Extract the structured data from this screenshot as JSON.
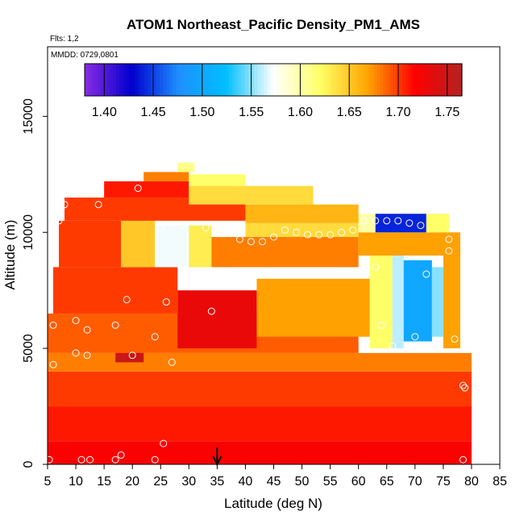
{
  "chart_data": {
    "type": "heatmap",
    "title": "ATOM1 Northeast_Pacific Density_PM1_AMS",
    "subtitle_flights": "Flts: 1,2",
    "subtitle_dates": "MMDD: 0729,0801",
    "xlabel": "Latitude (deg N)",
    "ylabel": "Altitude (m)",
    "xlim": [
      5,
      85
    ],
    "ylim": [
      0,
      18000
    ],
    "x_ticks": [
      "5",
      "10",
      "15",
      "20",
      "25",
      "30",
      "35",
      "40",
      "45",
      "50",
      "55",
      "60",
      "65",
      "70",
      "75",
      "80",
      "85"
    ],
    "y_ticks": [
      "0",
      "5000",
      "10000",
      "15000"
    ],
    "colorbar": {
      "min": 1.38,
      "max": 1.765,
      "ticks": [
        "1.40",
        "1.45",
        "1.50",
        "1.55",
        "1.60",
        "1.65",
        "1.70",
        "1.75"
      ],
      "colors": [
        "#8a2be2",
        "#0000cd",
        "#1e90ff",
        "#00bfff",
        "#ffffff",
        "#ffff66",
        "#ffa500",
        "#ff0000",
        "#b22222"
      ],
      "placement": "top"
    },
    "marker": {
      "x": 35,
      "symbol": "down-arrow"
    },
    "sample_points": [
      [
        5.3,
        200
      ],
      [
        11,
        200
      ],
      [
        12.5,
        200
      ],
      [
        17,
        200
      ],
      [
        18,
        400
      ],
      [
        24,
        200
      ],
      [
        25.5,
        900
      ],
      [
        78.5,
        200
      ],
      [
        6,
        4300
      ],
      [
        10,
        4800
      ],
      [
        12,
        4700
      ],
      [
        20,
        4700
      ],
      [
        27,
        4400
      ],
      [
        78.5,
        3400
      ],
      [
        78.8,
        3300
      ],
      [
        6,
        6000
      ],
      [
        10,
        6200
      ],
      [
        12,
        5800
      ],
      [
        17,
        6000
      ],
      [
        24,
        5500
      ],
      [
        66,
        5100
      ],
      [
        70,
        5500
      ],
      [
        77,
        5400
      ],
      [
        19,
        7100
      ],
      [
        26,
        7000
      ],
      [
        34,
        6600
      ],
      [
        64,
        6000
      ],
      [
        72,
        8200
      ],
      [
        63,
        8500
      ],
      [
        76,
        9200
      ],
      [
        76,
        9700
      ],
      [
        7,
        10500
      ],
      [
        25,
        10200
      ],
      [
        29,
        10300
      ],
      [
        33,
        10200
      ],
      [
        39,
        9700
      ],
      [
        41,
        9600
      ],
      [
        43,
        9600
      ],
      [
        45,
        9800
      ],
      [
        47,
        10100
      ],
      [
        49,
        10000
      ],
      [
        51,
        9900
      ],
      [
        53,
        9900
      ],
      [
        55,
        9900
      ],
      [
        57,
        10000
      ],
      [
        59,
        10100
      ],
      [
        61,
        10500
      ],
      [
        63,
        10500
      ],
      [
        65,
        10500
      ],
      [
        67,
        10500
      ],
      [
        69,
        10400
      ],
      [
        71,
        10300
      ],
      [
        8,
        11200
      ],
      [
        14,
        11200
      ],
      [
        21,
        11900
      ]
    ],
    "grid": [
      {
        "x0": 5,
        "x1": 80,
        "y0": 0,
        "y1": 1000,
        "v": 1.72
      },
      {
        "x0": 5,
        "x1": 80,
        "y0": 1000,
        "y1": 2500,
        "v": 1.71
      },
      {
        "x0": 5,
        "x1": 80,
        "y0": 2500,
        "y1": 4000,
        "v": 1.7
      },
      {
        "x0": 5,
        "x1": 80,
        "y0": 4000,
        "y1": 4800,
        "v": 1.68
      },
      {
        "x0": 17,
        "x1": 22,
        "y0": 4400,
        "y1": 5200,
        "v": 1.75
      },
      {
        "x0": 5,
        "x1": 60,
        "y0": 4800,
        "y1": 6500,
        "v": 1.69
      },
      {
        "x0": 28,
        "x1": 42,
        "y0": 5000,
        "y1": 7500,
        "v": 1.73
      },
      {
        "x0": 42,
        "x1": 62,
        "y0": 5500,
        "y1": 8000,
        "v": 1.67
      },
      {
        "x0": 62,
        "x1": 66,
        "y0": 5000,
        "y1": 9000,
        "v": 1.62
      },
      {
        "x0": 66,
        "x1": 68,
        "y0": 5000,
        "y1": 9000,
        "v": 1.56
      },
      {
        "x0": 68,
        "x1": 73,
        "y0": 5300,
        "y1": 8800,
        "v": 1.5
      },
      {
        "x0": 73,
        "x1": 75,
        "y0": 5500,
        "y1": 8500,
        "v": 1.55
      },
      {
        "x0": 75,
        "x1": 78,
        "y0": 5000,
        "y1": 9500,
        "v": 1.67
      },
      {
        "x0": 6,
        "x1": 28,
        "y0": 6500,
        "y1": 8500,
        "v": 1.7
      },
      {
        "x0": 7,
        "x1": 18,
        "y0": 8500,
        "y1": 10500,
        "v": 1.7
      },
      {
        "x0": 18,
        "x1": 24,
        "y0": 8500,
        "y1": 10500,
        "v": 1.65
      },
      {
        "x0": 24,
        "x1": 30,
        "y0": 8500,
        "y1": 10300,
        "v": 1.57
      },
      {
        "x0": 30,
        "x1": 34,
        "y0": 8500,
        "y1": 10300,
        "v": 1.63
      },
      {
        "x0": 34,
        "x1": 60,
        "y0": 8500,
        "y1": 9800,
        "v": 1.68
      },
      {
        "x0": 40,
        "x1": 60,
        "y0": 9800,
        "y1": 10400,
        "v": 1.64
      },
      {
        "x0": 60,
        "x1": 78,
        "y0": 9000,
        "y1": 10000,
        "v": 1.67
      },
      {
        "x0": 60,
        "x1": 63,
        "y0": 10000,
        "y1": 10800,
        "v": 1.6
      },
      {
        "x0": 63,
        "x1": 72,
        "y0": 10000,
        "y1": 10800,
        "v": 1.44
      },
      {
        "x0": 72,
        "x1": 76,
        "y0": 10000,
        "y1": 10800,
        "v": 1.62
      },
      {
        "x0": 8,
        "x1": 40,
        "y0": 10500,
        "y1": 11500,
        "v": 1.7
      },
      {
        "x0": 40,
        "x1": 60,
        "y0": 10400,
        "y1": 11200,
        "v": 1.66
      },
      {
        "x0": 15,
        "x1": 30,
        "y0": 11500,
        "y1": 12200,
        "v": 1.71
      },
      {
        "x0": 30,
        "x1": 52,
        "y0": 11200,
        "y1": 12000,
        "v": 1.64
      },
      {
        "x0": 22,
        "x1": 30,
        "y0": 12200,
        "y1": 12600,
        "v": 1.68
      },
      {
        "x0": 30,
        "x1": 40,
        "y0": 12000,
        "y1": 12500,
        "v": 1.62
      },
      {
        "x0": 28,
        "x1": 31,
        "y0": 12600,
        "y1": 13000,
        "v": 1.61
      }
    ]
  }
}
